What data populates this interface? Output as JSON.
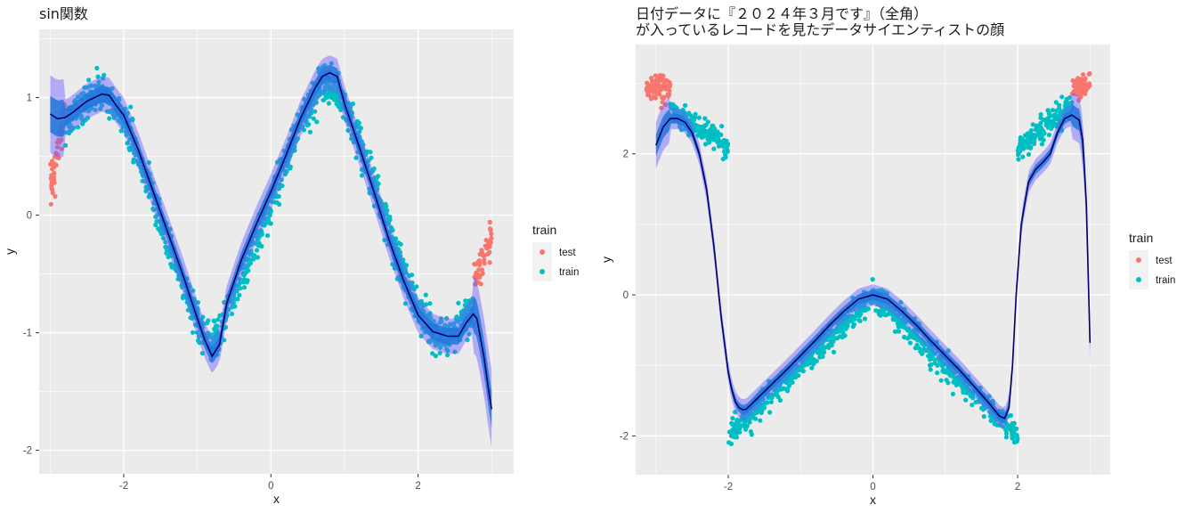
{
  "chart_data": [
    {
      "type": "scatter",
      "title": [
        "sin関数"
      ],
      "xlabel": "x",
      "ylabel": "y",
      "xlim": [
        -3.15,
        3.3
      ],
      "ylim": [
        -2.2,
        1.58
      ],
      "x_ticks": [
        -2,
        0,
        2
      ],
      "y_ticks": [
        -2,
        -1,
        0,
        1
      ],
      "x_tick_labels": [
        "-2",
        "0",
        "2"
      ],
      "y_tick_labels": [
        "-2",
        "-1",
        "0",
        "1"
      ],
      "grid": true,
      "legend": {
        "title": "train",
        "position": "right",
        "entries": [
          {
            "label": "test",
            "color": "#F8766D"
          },
          {
            "label": "train",
            "color": "#00BFC4"
          }
        ]
      },
      "series": [
        {
          "name": "test",
          "color": "#F8766D",
          "note_range": [
            [
              -3.0,
              -2.8
            ],
            [
              2.75,
              3.0
            ]
          ]
        },
        {
          "name": "train",
          "color": "#00BFC4",
          "note_range": [
            [
              -2.8,
              2.75
            ]
          ]
        }
      ],
      "fit_line": {
        "color": "#000066",
        "x": [
          -3.0,
          -2.9,
          -2.8,
          -2.7,
          -2.6,
          -2.5,
          -2.4,
          -2.3,
          -2.2,
          -2.1,
          -2.0,
          -1.8,
          -1.6,
          -1.4,
          -1.2,
          -1.0,
          -0.9,
          -0.8,
          -0.7,
          -0.6,
          -0.4,
          -0.2,
          0.0,
          0.2,
          0.4,
          0.6,
          0.7,
          0.8,
          0.9,
          1.0,
          1.2,
          1.4,
          1.6,
          1.8,
          2.0,
          2.2,
          2.4,
          2.55,
          2.65,
          2.75,
          2.8,
          2.85,
          2.9,
          2.95,
          3.0
        ],
        "y": [
          0.86,
          0.82,
          0.83,
          0.87,
          0.92,
          0.97,
          1.0,
          1.03,
          1.02,
          0.93,
          0.85,
          0.55,
          0.2,
          -0.15,
          -0.5,
          -0.88,
          -1.06,
          -1.2,
          -1.1,
          -0.75,
          -0.38,
          -0.08,
          0.2,
          0.5,
          0.82,
          1.08,
          1.18,
          1.21,
          1.18,
          0.95,
          0.58,
          0.2,
          -0.2,
          -0.55,
          -0.85,
          -0.99,
          -1.03,
          -1.03,
          -0.92,
          -0.84,
          -0.88,
          -1.05,
          -1.22,
          -1.45,
          -1.65
        ]
      }
    },
    {
      "type": "scatter",
      "title": [
        "日付データに『２０２４年３月です』（全角）",
        "が入っているレコードを見たデータサイエンティストの顔"
      ],
      "xlabel": "x",
      "ylabel": "y",
      "xlim": [
        -3.28,
        3.28
      ],
      "ylim": [
        -2.55,
        3.55
      ],
      "x_ticks": [
        -2,
        0,
        2
      ],
      "y_ticks": [
        -2,
        0,
        2
      ],
      "x_tick_labels": [
        "-2",
        "0",
        "2"
      ],
      "y_tick_labels": [
        "-2",
        "0",
        "2"
      ],
      "grid": true,
      "legend": {
        "title": "train",
        "position": "right",
        "entries": [
          {
            "label": "test",
            "color": "#F8766D"
          },
          {
            "label": "train",
            "color": "#00BFC4"
          }
        ]
      },
      "series": [
        {
          "name": "test",
          "color": "#F8766D",
          "note_range": [
            [
              -3.0,
              -2.8
            ],
            [
              2.75,
              3.0
            ]
          ]
        },
        {
          "name": "train",
          "color": "#00BFC4",
          "note_range": [
            [
              -2.8,
              -2.0
            ],
            [
              -2.0,
              2.0
            ],
            [
              2.0,
              2.75
            ]
          ]
        }
      ],
      "fit_line": {
        "color": "#000066",
        "x": [
          -3.0,
          -2.9,
          -2.8,
          -2.7,
          -2.6,
          -2.5,
          -2.4,
          -2.3,
          -2.2,
          -2.1,
          -2.0,
          -1.95,
          -1.9,
          -1.85,
          -1.8,
          -1.75,
          -1.6,
          -1.4,
          -1.2,
          -1.0,
          -0.8,
          -0.6,
          -0.4,
          -0.2,
          0.0,
          0.2,
          0.4,
          0.6,
          0.8,
          1.0,
          1.2,
          1.4,
          1.6,
          1.75,
          1.82,
          1.88,
          1.93,
          1.98,
          2.05,
          2.15,
          2.25,
          2.35,
          2.45,
          2.55,
          2.65,
          2.75,
          2.85,
          2.9,
          2.95,
          3.0
        ],
        "y": [
          2.12,
          2.38,
          2.5,
          2.5,
          2.45,
          2.3,
          2.0,
          1.5,
          0.7,
          -0.3,
          -1.1,
          -1.35,
          -1.52,
          -1.6,
          -1.63,
          -1.62,
          -1.47,
          -1.27,
          -1.07,
          -0.86,
          -0.65,
          -0.43,
          -0.23,
          -0.06,
          0.0,
          -0.06,
          -0.23,
          -0.43,
          -0.65,
          -0.86,
          -1.07,
          -1.3,
          -1.53,
          -1.72,
          -1.75,
          -1.6,
          -1.0,
          0.0,
          1.0,
          1.6,
          1.78,
          1.88,
          2.0,
          2.3,
          2.5,
          2.55,
          2.48,
          2.2,
          1.3,
          -0.68
        ]
      }
    }
  ]
}
